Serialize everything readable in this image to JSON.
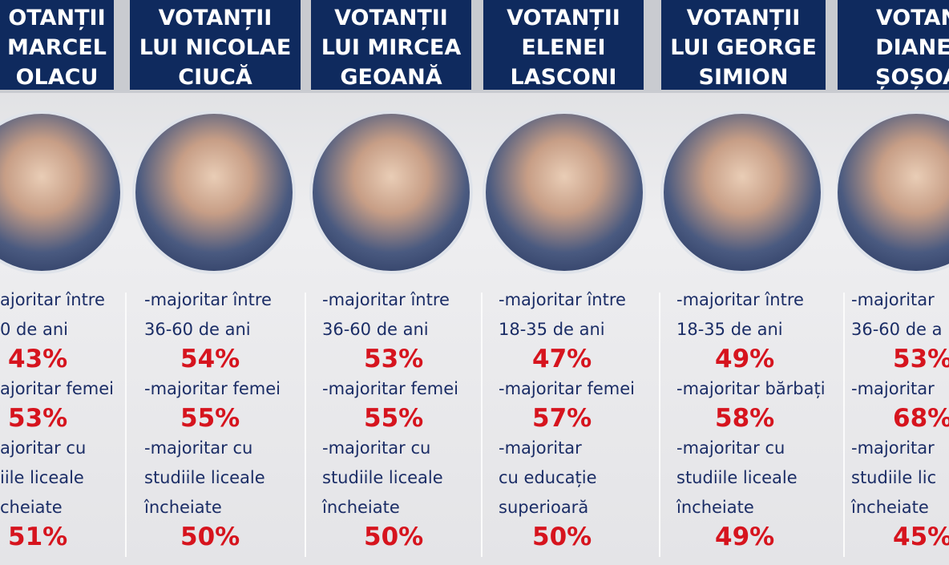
{
  "columns": [
    {
      "header": [
        "OTANȚII",
        "MARCEL",
        "OLACU"
      ],
      "items": [
        {
          "label": [
            "ajoritar între",
            "0 de ani"
          ],
          "percent": "43%"
        },
        {
          "label": [
            "ajoritar femei"
          ],
          "percent": "53%"
        },
        {
          "label": [
            "ajoritar cu",
            "iile liceale",
            "cheiate"
          ],
          "percent": "51%"
        }
      ]
    },
    {
      "header": [
        "VOTANȚII",
        "LUI NICOLAE",
        "CIUCĂ"
      ],
      "items": [
        {
          "label": [
            "-majoritar între",
            "36-60 de ani"
          ],
          "percent": "54%"
        },
        {
          "label": [
            "-majoritar femei"
          ],
          "percent": "55%"
        },
        {
          "label": [
            "-majoritar cu",
            "studiile liceale",
            "încheiate"
          ],
          "percent": "50%"
        }
      ]
    },
    {
      "header": [
        "VOTANȚII",
        "LUI MIRCEA",
        "GEOANĂ"
      ],
      "items": [
        {
          "label": [
            "-majoritar între",
            "36-60 de ani"
          ],
          "percent": "53%"
        },
        {
          "label": [
            "-majoritar femei"
          ],
          "percent": "55%"
        },
        {
          "label": [
            "-majoritar cu",
            "studiile liceale",
            "încheiate"
          ],
          "percent": "50%"
        }
      ]
    },
    {
      "header": [
        "VOTANȚII",
        "ELENEI",
        "LASCONI"
      ],
      "items": [
        {
          "label": [
            "-majoritar între",
            "18-35 de ani"
          ],
          "percent": "47%"
        },
        {
          "label": [
            "-majoritar femei"
          ],
          "percent": "57%"
        },
        {
          "label": [
            "-majoritar",
            "cu educație",
            "superioară"
          ],
          "percent": "50%"
        }
      ]
    },
    {
      "header": [
        "VOTANȚII",
        "LUI GEORGE",
        "SIMION"
      ],
      "items": [
        {
          "label": [
            "-majoritar între",
            "18-35 de ani"
          ],
          "percent": "49%"
        },
        {
          "label": [
            "-majoritar bărbați"
          ],
          "percent": "58%"
        },
        {
          "label": [
            "-majoritar cu",
            "studiile liceale",
            "încheiate"
          ],
          "percent": "49%"
        }
      ]
    },
    {
      "header": [
        "VOTAN",
        "DIANEI",
        "ȘOȘOA"
      ],
      "items": [
        {
          "label": [
            "-majoritar",
            "36-60 de a"
          ],
          "percent": "53%"
        },
        {
          "label": [
            "-majoritar"
          ],
          "percent": "68%"
        },
        {
          "label": [
            "-majoritar",
            "studiile lic",
            "încheiate"
          ],
          "percent": "45%"
        }
      ]
    }
  ]
}
